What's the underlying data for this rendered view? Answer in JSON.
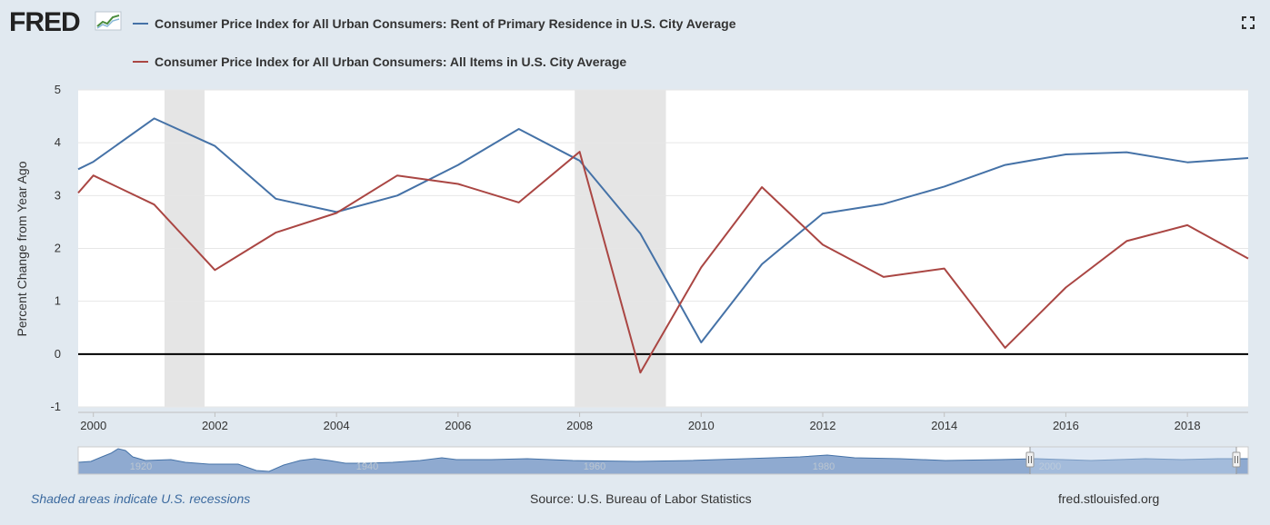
{
  "header": {
    "logo_text": "FRED",
    "logo_icon": "fred-graph-icon",
    "fullscreen_icon": "fullscreen-icon"
  },
  "footer": {
    "recession_note": "Shaded areas indicate U.S. recessions",
    "source": "Source: U.S. Bureau of Labor Statistics",
    "site": "fred.stlouisfed.org"
  },
  "colors": {
    "rent": "#4572a7",
    "all_items": "#aa4643",
    "recession": "#e5e5e5",
    "navigator": "#4572a7",
    "background": "#e1e9f0"
  },
  "navigator": {
    "labels": [
      "1920",
      "1940",
      "1960",
      "1980",
      "2000"
    ]
  },
  "chart_data": {
    "type": "line",
    "ylabel": "Percent Change from Year Ago",
    "xlim": [
      1999.75,
      2019.0
    ],
    "ylim": [
      -1,
      5
    ],
    "y_ticks": [
      -1,
      0,
      1,
      2,
      3,
      4,
      5
    ],
    "x_ticks": [
      2000,
      2002,
      2004,
      2006,
      2008,
      2010,
      2012,
      2014,
      2016,
      2018
    ],
    "grid": true,
    "legend_position": "top-left",
    "zero_line": true,
    "recessions": [
      [
        2001.17,
        2001.83
      ],
      [
        2007.92,
        2009.42
      ]
    ],
    "series": [
      {
        "name": "Consumer Price Index for All Urban Consumers: Rent of Primary Residence in U.S. City Average",
        "color": "#4572a7",
        "x": [
          1999.75,
          2000,
          2001,
          2002,
          2003,
          2004,
          2005,
          2006,
          2007,
          2008,
          2009,
          2010,
          2011,
          2012,
          2013,
          2014,
          2015,
          2016,
          2017,
          2018,
          2019
        ],
        "y": [
          3.5,
          3.64,
          4.46,
          3.94,
          2.94,
          2.69,
          3.0,
          3.58,
          4.26,
          3.66,
          2.28,
          0.22,
          1.7,
          2.66,
          2.84,
          3.17,
          3.58,
          3.78,
          3.82,
          3.63,
          3.71
        ]
      },
      {
        "name": "Consumer Price Index for All Urban Consumers: All Items in U.S. City Average",
        "color": "#aa4643",
        "x": [
          1999.75,
          2000,
          2001,
          2002,
          2003,
          2004,
          2005,
          2006,
          2007,
          2008,
          2009,
          2010,
          2011,
          2012,
          2013,
          2014,
          2015,
          2016,
          2017,
          2018,
          2019
        ],
        "y": [
          3.05,
          3.38,
          2.83,
          1.59,
          2.3,
          2.67,
          3.38,
          3.22,
          2.87,
          3.83,
          -0.35,
          1.64,
          3.16,
          2.07,
          1.46,
          1.62,
          0.12,
          1.26,
          2.14,
          2.44,
          1.81
        ]
      }
    ]
  }
}
